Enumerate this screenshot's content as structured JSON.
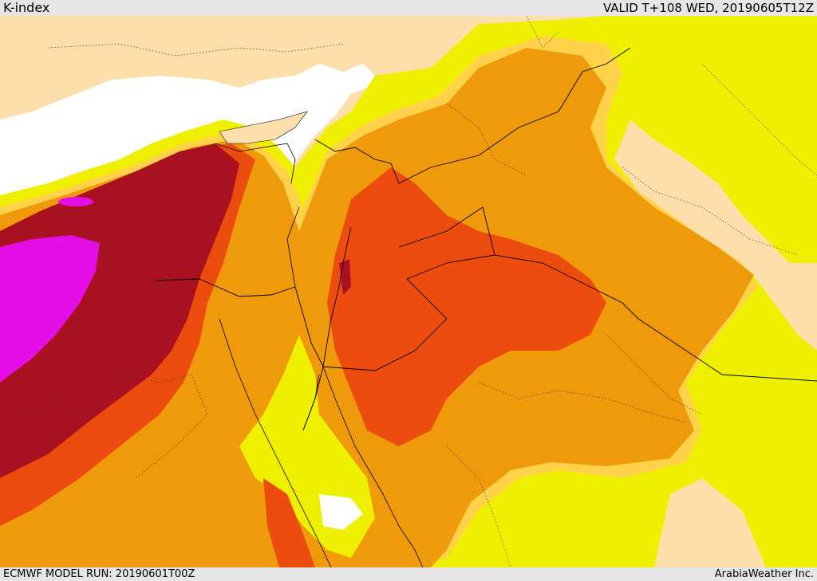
{
  "header": {
    "title": "K-index",
    "valid": "VALID T+108 WED, 20190605T12Z"
  },
  "footer": {
    "model_run": "ECMWF MODEL RUN: 20190601T00Z",
    "credit": "ArabiaWeather Inc."
  },
  "palette": {
    "land": "#fddfab",
    "sea": "#ffffff",
    "yellow": "#eef000",
    "light_orange": "#ffd24a",
    "orange": "#ee9a0a",
    "dark_orange": "#ec4c0e",
    "maroon": "#a8111f",
    "magenta": "#e60ee6"
  }
}
